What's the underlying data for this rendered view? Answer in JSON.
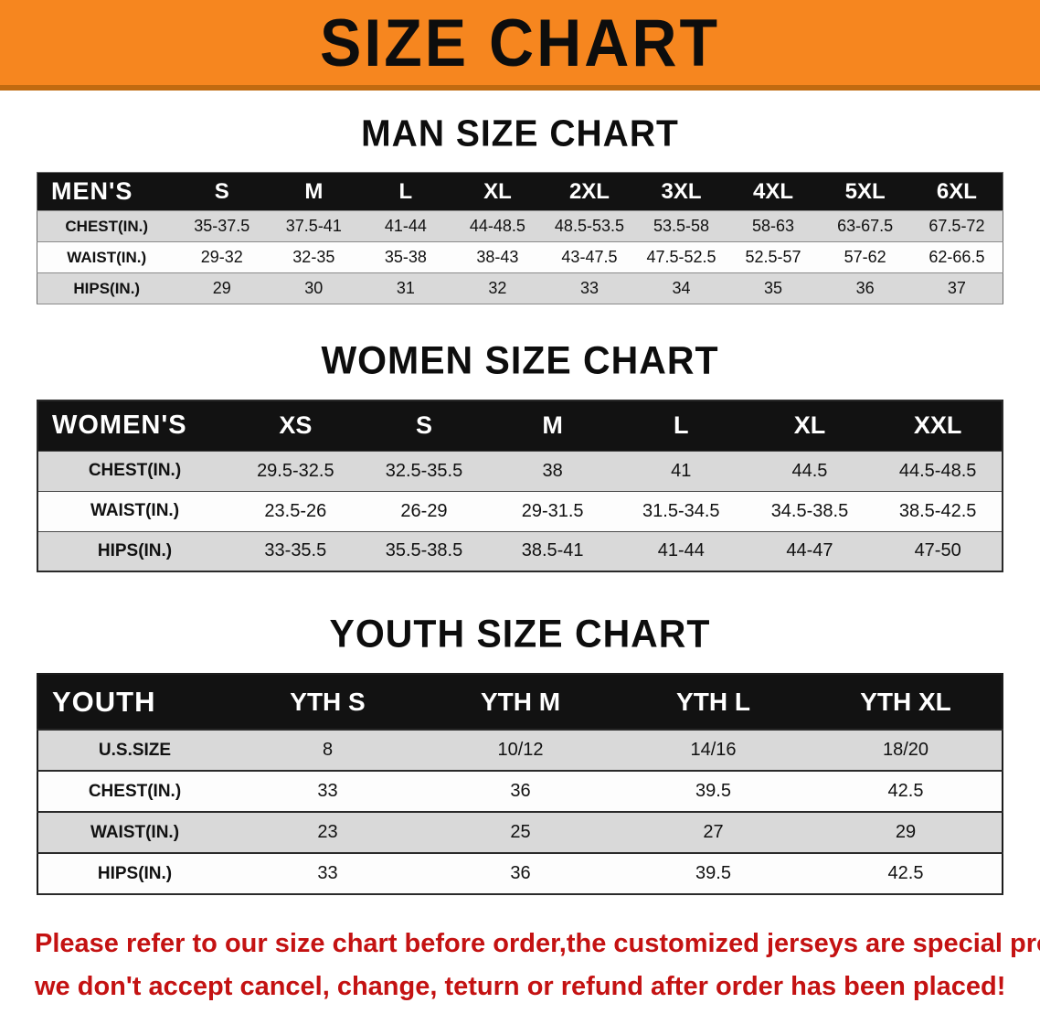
{
  "colors": {
    "banner_bg": "#f6861f",
    "banner_edge": "#c06a10",
    "header_bg": "#121212",
    "header_text": "#ffffff",
    "stripe": "#d9d9d9",
    "notice": "#c41212"
  },
  "banner": {
    "title": "SIZE CHART"
  },
  "sections": [
    {
      "id": "men",
      "heading": "MAN SIZE CHART",
      "table": {
        "corner": "MEN'S",
        "columns": [
          "S",
          "M",
          "L",
          "XL",
          "2XL",
          "3XL",
          "4XL",
          "5XL",
          "6XL"
        ],
        "rows": [
          {
            "label": "CHEST(IN.)",
            "values": [
              "35-37.5",
              "37.5-41",
              "41-44",
              "44-48.5",
              "48.5-53.5",
              "53.5-58",
              "58-63",
              "63-67.5",
              "67.5-72"
            ]
          },
          {
            "label": "WAIST(IN.)",
            "values": [
              "29-32",
              "32-35",
              "35-38",
              "38-43",
              "43-47.5",
              "47.5-52.5",
              "52.5-57",
              "57-62",
              "62-66.5"
            ]
          },
          {
            "label": "HIPS(IN.)",
            "values": [
              "29",
              "30",
              "31",
              "32",
              "33",
              "34",
              "35",
              "36",
              "37"
            ]
          }
        ]
      }
    },
    {
      "id": "women",
      "heading": "WOMEN SIZE CHART",
      "table": {
        "corner": "WOMEN'S",
        "columns": [
          "XS",
          "S",
          "M",
          "L",
          "XL",
          "XXL"
        ],
        "rows": [
          {
            "label": "CHEST(IN.)",
            "values": [
              "29.5-32.5",
              "32.5-35.5",
              "38",
              "41",
              "44.5",
              "44.5-48.5"
            ]
          },
          {
            "label": "WAIST(IN.)",
            "values": [
              "23.5-26",
              "26-29",
              "29-31.5",
              "31.5-34.5",
              "34.5-38.5",
              "38.5-42.5"
            ]
          },
          {
            "label": "HIPS(IN.)",
            "values": [
              "33-35.5",
              "35.5-38.5",
              "38.5-41",
              "41-44",
              "44-47",
              "47-50"
            ]
          }
        ]
      }
    },
    {
      "id": "youth",
      "heading": "YOUTH SIZE CHART",
      "table": {
        "corner": "YOUTH",
        "columns": [
          "YTH S",
          "YTH M",
          "YTH L",
          "YTH XL"
        ],
        "rows": [
          {
            "label": "U.S.SIZE",
            "values": [
              "8",
              "10/12",
              "14/16",
              "18/20"
            ]
          },
          {
            "label": "CHEST(IN.)",
            "values": [
              "33",
              "36",
              "39.5",
              "42.5"
            ]
          },
          {
            "label": "WAIST(IN.)",
            "values": [
              "23",
              "25",
              "27",
              "29"
            ]
          },
          {
            "label": "HIPS(IN.)",
            "values": [
              "33",
              "36",
              "39.5",
              "42.5"
            ]
          }
        ]
      }
    }
  ],
  "footer": {
    "line1": "Please refer to our size chart before order,the customized jerseys are special products,",
    "line2": "we don't accept cancel, change, teturn or refund after order has been placed!"
  }
}
